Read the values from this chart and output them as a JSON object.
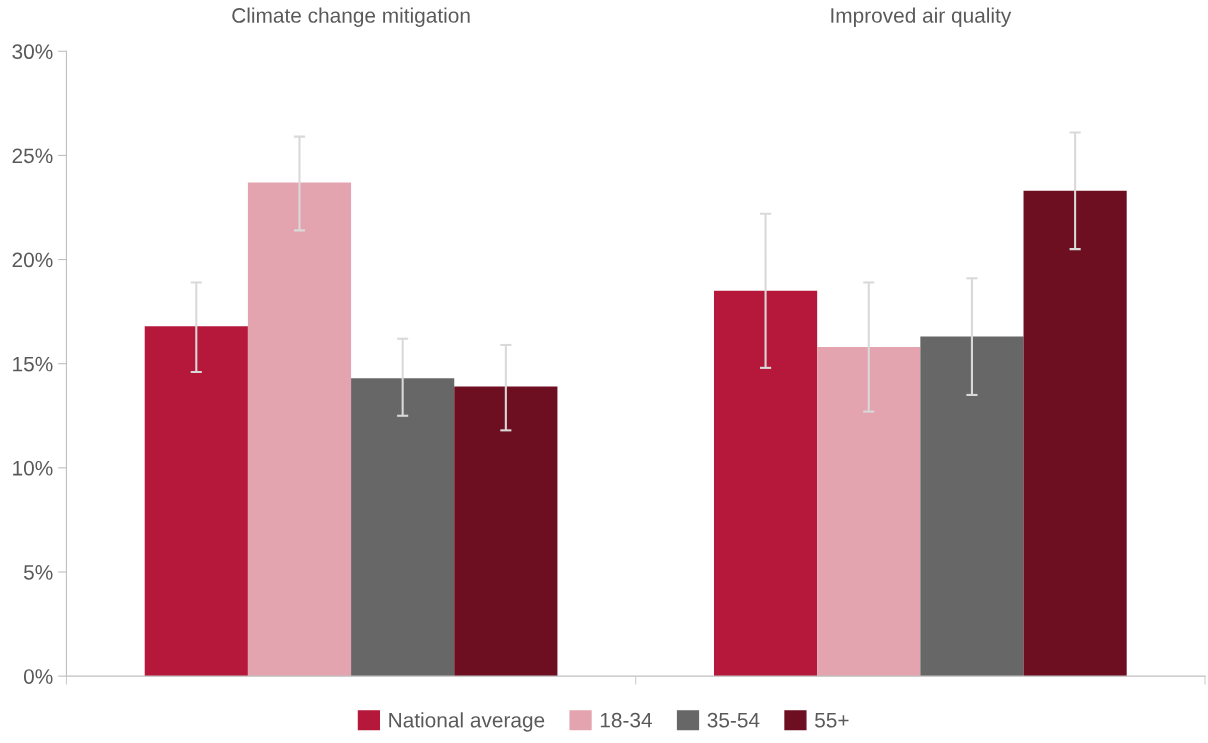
{
  "chart_data": {
    "type": "bar",
    "categories": [
      "Climate change mitigation",
      "Improved air quality"
    ],
    "series": [
      {
        "name": "National average",
        "color": "#b5183a",
        "values": [
          16.8,
          18.5
        ],
        "errors": [
          [
            14.6,
            18.9
          ],
          [
            14.8,
            22.2
          ]
        ]
      },
      {
        "name": "18-34",
        "color": "#e3a4af",
        "values": [
          23.7,
          15.8
        ],
        "errors": [
          [
            21.4,
            25.9
          ],
          [
            12.7,
            18.9
          ]
        ]
      },
      {
        "name": "35-54",
        "color": "#676767",
        "values": [
          14.3,
          16.3
        ],
        "errors": [
          [
            12.5,
            16.2
          ],
          [
            13.5,
            19.1
          ]
        ]
      },
      {
        "name": "55+",
        "color": "#6d0f20",
        "values": [
          13.9,
          23.3
        ],
        "errors": [
          [
            11.8,
            15.9
          ],
          [
            20.5,
            26.1
          ]
        ]
      }
    ],
    "ylim": [
      0,
      30
    ],
    "yticks": [
      {
        "value": 0,
        "label": "0%"
      },
      {
        "value": 5,
        "label": "5%"
      },
      {
        "value": 10,
        "label": "10%"
      },
      {
        "value": 15,
        "label": "15%"
      },
      {
        "value": 20,
        "label": "20%"
      },
      {
        "value": 25,
        "label": "25%"
      },
      {
        "value": 30,
        "label": "30%"
      }
    ],
    "grid": false,
    "legend": "bottom"
  }
}
